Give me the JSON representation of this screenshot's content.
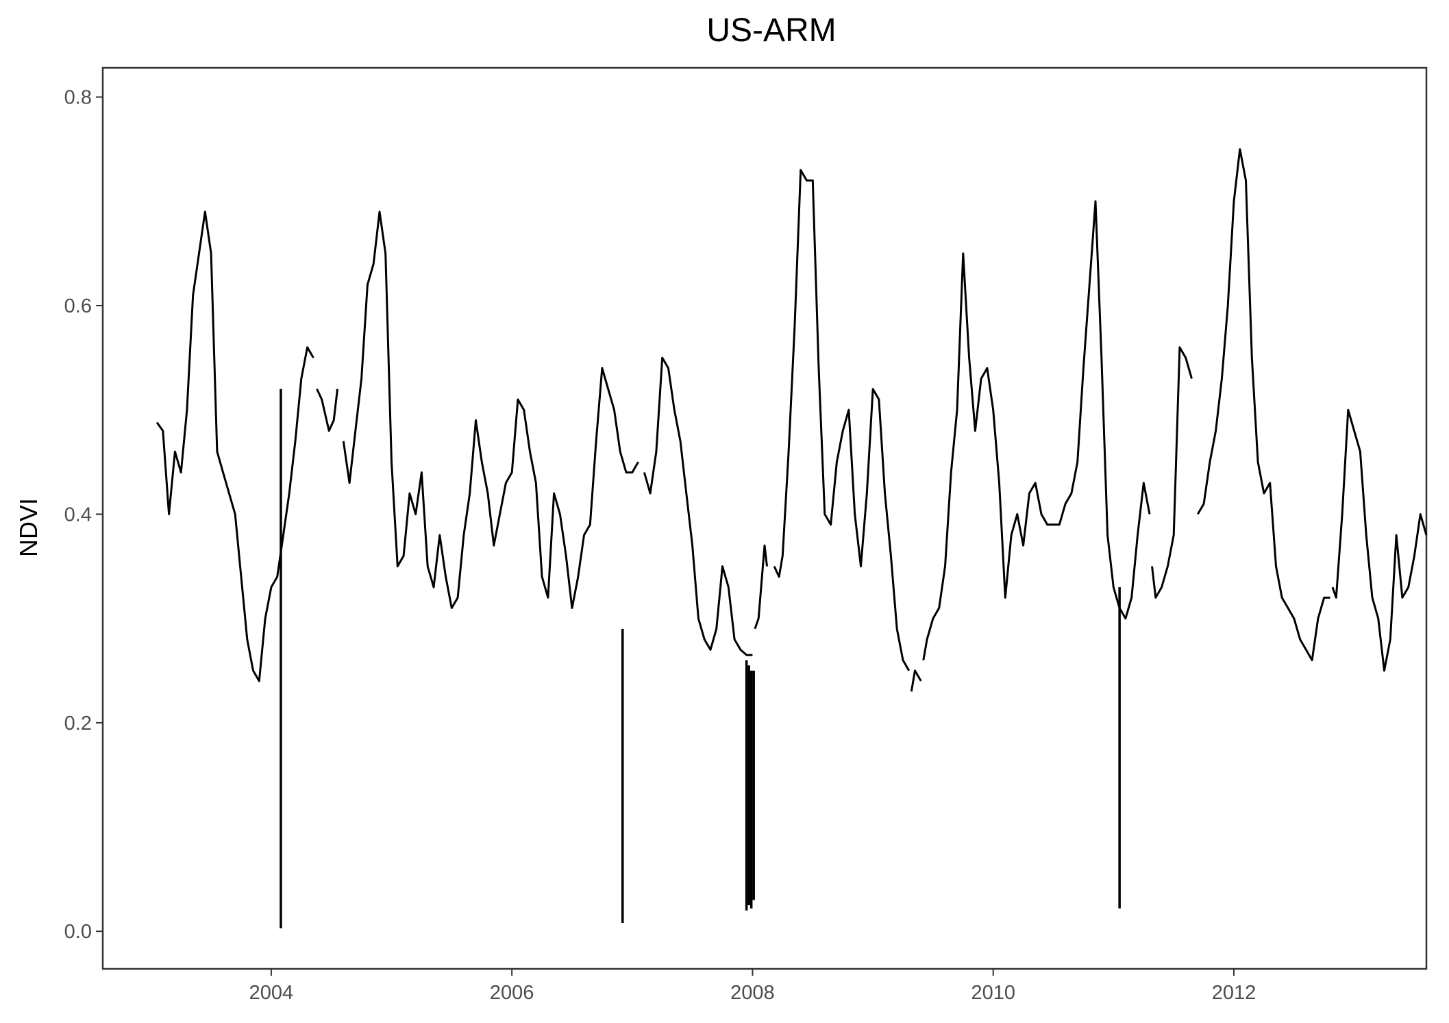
{
  "chart_data": {
    "type": "line",
    "title": "US-ARM",
    "xlabel": "",
    "ylabel": "NDVI",
    "xlim": [
      2002.6,
      2013.6
    ],
    "ylim": [
      -0.036,
      0.828
    ],
    "x_ticks": [
      2004,
      2006,
      2008,
      2010,
      2012
    ],
    "x_tick_labels": [
      "2004",
      "2006",
      "2008",
      "2010",
      "2012"
    ],
    "y_ticks": [
      0.0,
      0.2,
      0.4,
      0.6,
      0.8
    ],
    "y_tick_labels": [
      "0.0",
      "0.2",
      "0.4",
      "0.6",
      "0.8"
    ],
    "grid": false,
    "legend": "none",
    "colors": {
      "line": "#000000",
      "axis": "#333333",
      "tick_text": "#4d4d4d"
    },
    "series": [
      {
        "segments": [
          [
            [
              2003.05,
              0.488
            ],
            [
              2003.1,
              0.48
            ],
            [
              2003.15,
              0.4
            ],
            [
              2003.2,
              0.46
            ],
            [
              2003.25,
              0.44
            ],
            [
              2003.3,
              0.5
            ],
            [
              2003.35,
              0.61
            ],
            [
              2003.4,
              0.65
            ],
            [
              2003.45,
              0.69
            ],
            [
              2003.5,
              0.65
            ],
            [
              2003.55,
              0.46
            ],
            [
              2003.6,
              0.44
            ],
            [
              2003.65,
              0.42
            ],
            [
              2003.7,
              0.4
            ],
            [
              2003.75,
              0.34
            ],
            [
              2003.8,
              0.28
            ],
            [
              2003.85,
              0.25
            ],
            [
              2003.9,
              0.24
            ],
            [
              2003.95,
              0.3
            ],
            [
              2004.0,
              0.33
            ],
            [
              2004.05,
              0.34
            ],
            [
              2004.1,
              0.38
            ],
            [
              2004.15,
              0.42
            ],
            [
              2004.2,
              0.47
            ],
            [
              2004.25,
              0.53
            ],
            [
              2004.3,
              0.56
            ],
            [
              2004.35,
              0.55
            ]
          ],
          [
            [
              2004.38,
              0.52
            ],
            [
              2004.42,
              0.51
            ],
            [
              2004.48,
              0.48
            ],
            [
              2004.52,
              0.49
            ],
            [
              2004.55,
              0.52
            ]
          ],
          [
            [
              2004.6,
              0.47
            ],
            [
              2004.65,
              0.43
            ],
            [
              2004.7,
              0.48
            ],
            [
              2004.75,
              0.53
            ],
            [
              2004.8,
              0.62
            ],
            [
              2004.85,
              0.64
            ],
            [
              2004.9,
              0.69
            ],
            [
              2004.95,
              0.65
            ],
            [
              2005.0,
              0.45
            ],
            [
              2005.05,
              0.35
            ],
            [
              2005.1,
              0.36
            ],
            [
              2005.15,
              0.42
            ],
            [
              2005.2,
              0.4
            ],
            [
              2005.25,
              0.44
            ],
            [
              2005.3,
              0.35
            ],
            [
              2005.35,
              0.33
            ],
            [
              2005.4,
              0.38
            ],
            [
              2005.45,
              0.34
            ],
            [
              2005.5,
              0.31
            ],
            [
              2005.55,
              0.32
            ],
            [
              2005.6,
              0.38
            ],
            [
              2005.65,
              0.42
            ],
            [
              2005.7,
              0.49
            ],
            [
              2005.75,
              0.45
            ],
            [
              2005.8,
              0.42
            ],
            [
              2005.85,
              0.37
            ],
            [
              2005.9,
              0.4
            ],
            [
              2005.95,
              0.43
            ],
            [
              2006.0,
              0.44
            ],
            [
              2006.05,
              0.51
            ],
            [
              2006.1,
              0.5
            ],
            [
              2006.15,
              0.46
            ],
            [
              2006.2,
              0.43
            ],
            [
              2006.25,
              0.34
            ],
            [
              2006.3,
              0.32
            ],
            [
              2006.35,
              0.42
            ],
            [
              2006.4,
              0.4
            ],
            [
              2006.45,
              0.36
            ],
            [
              2006.5,
              0.31
            ],
            [
              2006.55,
              0.34
            ],
            [
              2006.6,
              0.38
            ],
            [
              2006.65,
              0.39
            ],
            [
              2006.7,
              0.47
            ],
            [
              2006.75,
              0.54
            ],
            [
              2006.8,
              0.52
            ],
            [
              2006.85,
              0.5
            ],
            [
              2006.9,
              0.46
            ],
            [
              2006.95,
              0.44
            ],
            [
              2007.0,
              0.44
            ],
            [
              2007.05,
              0.45
            ]
          ],
          [
            [
              2007.1,
              0.44
            ],
            [
              2007.15,
              0.42
            ],
            [
              2007.2,
              0.46
            ],
            [
              2007.25,
              0.55
            ],
            [
              2007.3,
              0.54
            ],
            [
              2007.35,
              0.5
            ],
            [
              2007.4,
              0.47
            ],
            [
              2007.45,
              0.42
            ],
            [
              2007.5,
              0.37
            ],
            [
              2007.55,
              0.3
            ],
            [
              2007.6,
              0.28
            ],
            [
              2007.65,
              0.27
            ],
            [
              2007.7,
              0.29
            ],
            [
              2007.75,
              0.35
            ],
            [
              2007.8,
              0.33
            ],
            [
              2007.85,
              0.28
            ],
            [
              2007.9,
              0.27
            ],
            [
              2007.95,
              0.265
            ],
            [
              2008.0,
              0.265
            ]
          ],
          [
            [
              2008.02,
              0.29
            ],
            [
              2008.05,
              0.3
            ],
            [
              2008.1,
              0.37
            ],
            [
              2008.12,
              0.35
            ]
          ],
          [
            [
              2008.18,
              0.35
            ],
            [
              2008.22,
              0.34
            ],
            [
              2008.25,
              0.36
            ],
            [
              2008.3,
              0.46
            ],
            [
              2008.35,
              0.58
            ],
            [
              2008.4,
              0.73
            ],
            [
              2008.45,
              0.72
            ],
            [
              2008.5,
              0.72
            ],
            [
              2008.55,
              0.54
            ],
            [
              2008.6,
              0.4
            ],
            [
              2008.65,
              0.39
            ],
            [
              2008.7,
              0.45
            ],
            [
              2008.75,
              0.48
            ],
            [
              2008.8,
              0.5
            ],
            [
              2008.85,
              0.4
            ],
            [
              2008.9,
              0.35
            ],
            [
              2008.95,
              0.42
            ],
            [
              2009.0,
              0.52
            ],
            [
              2009.05,
              0.51
            ],
            [
              2009.1,
              0.42
            ],
            [
              2009.15,
              0.36
            ],
            [
              2009.2,
              0.29
            ],
            [
              2009.25,
              0.26
            ],
            [
              2009.3,
              0.25
            ]
          ],
          [
            [
              2009.32,
              0.23
            ],
            [
              2009.35,
              0.25
            ],
            [
              2009.4,
              0.24
            ]
          ],
          [
            [
              2009.42,
              0.26
            ],
            [
              2009.45,
              0.28
            ],
            [
              2009.5,
              0.3
            ],
            [
              2009.55,
              0.31
            ],
            [
              2009.6,
              0.35
            ],
            [
              2009.65,
              0.44
            ],
            [
              2009.7,
              0.5
            ],
            [
              2009.75,
              0.65
            ],
            [
              2009.8,
              0.55
            ],
            [
              2009.85,
              0.48
            ],
            [
              2009.9,
              0.53
            ],
            [
              2009.95,
              0.54
            ],
            [
              2010.0,
              0.5
            ],
            [
              2010.05,
              0.43
            ],
            [
              2010.1,
              0.32
            ],
            [
              2010.15,
              0.38
            ],
            [
              2010.2,
              0.4
            ],
            [
              2010.25,
              0.37
            ],
            [
              2010.3,
              0.42
            ],
            [
              2010.35,
              0.43
            ],
            [
              2010.4,
              0.4
            ],
            [
              2010.45,
              0.39
            ],
            [
              2010.5,
              0.39
            ],
            [
              2010.55,
              0.39
            ],
            [
              2010.6,
              0.41
            ],
            [
              2010.65,
              0.42
            ],
            [
              2010.7,
              0.45
            ],
            [
              2010.75,
              0.54
            ],
            [
              2010.8,
              0.62
            ],
            [
              2010.85,
              0.7
            ],
            [
              2010.9,
              0.55
            ],
            [
              2010.95,
              0.38
            ],
            [
              2011.0,
              0.33
            ],
            [
              2011.05,
              0.31
            ],
            [
              2011.1,
              0.3
            ],
            [
              2011.15,
              0.32
            ],
            [
              2011.2,
              0.38
            ],
            [
              2011.25,
              0.43
            ],
            [
              2011.3,
              0.4
            ]
          ],
          [
            [
              2011.32,
              0.35
            ],
            [
              2011.35,
              0.32
            ],
            [
              2011.4,
              0.33
            ],
            [
              2011.45,
              0.35
            ],
            [
              2011.5,
              0.38
            ],
            [
              2011.55,
              0.56
            ],
            [
              2011.6,
              0.55
            ],
            [
              2011.65,
              0.53
            ]
          ],
          [
            [
              2011.7,
              0.4
            ],
            [
              2011.75,
              0.41
            ],
            [
              2011.8,
              0.45
            ],
            [
              2011.85,
              0.48
            ],
            [
              2011.9,
              0.53
            ],
            [
              2011.95,
              0.6
            ],
            [
              2012.0,
              0.7
            ],
            [
              2012.05,
              0.75
            ],
            [
              2012.1,
              0.72
            ],
            [
              2012.15,
              0.55
            ],
            [
              2012.2,
              0.45
            ],
            [
              2012.25,
              0.42
            ],
            [
              2012.3,
              0.43
            ],
            [
              2012.35,
              0.35
            ],
            [
              2012.4,
              0.32
            ],
            [
              2012.45,
              0.31
            ],
            [
              2012.5,
              0.3
            ],
            [
              2012.55,
              0.28
            ],
            [
              2012.6,
              0.27
            ],
            [
              2012.65,
              0.26
            ],
            [
              2012.7,
              0.3
            ],
            [
              2012.75,
              0.32
            ],
            [
              2012.8,
              0.32
            ]
          ],
          [
            [
              2012.82,
              0.33
            ],
            [
              2012.85,
              0.32
            ],
            [
              2012.9,
              0.4
            ],
            [
              2012.95,
              0.5
            ],
            [
              2013.0,
              0.48
            ],
            [
              2013.05,
              0.46
            ],
            [
              2013.1,
              0.38
            ],
            [
              2013.15,
              0.32
            ],
            [
              2013.2,
              0.3
            ],
            [
              2013.25,
              0.25
            ],
            [
              2013.3,
              0.28
            ],
            [
              2013.35,
              0.38
            ],
            [
              2013.4,
              0.32
            ],
            [
              2013.45,
              0.33
            ],
            [
              2013.5,
              0.36
            ],
            [
              2013.55,
              0.4
            ],
            [
              2013.6,
              0.38
            ]
          ]
        ],
        "spikes": [
          {
            "x": 2004.08,
            "y_from": 0.52,
            "y_to": 0.003
          },
          {
            "x": 2006.92,
            "y_from": 0.29,
            "y_to": 0.008
          },
          {
            "x": 2007.95,
            "y_from": 0.26,
            "y_to": 0.02
          },
          {
            "x": 2007.97,
            "y_from": 0.255,
            "y_to": 0.025
          },
          {
            "x": 2007.99,
            "y_from": 0.25,
            "y_to": 0.022
          },
          {
            "x": 2008.01,
            "y_from": 0.25,
            "y_to": 0.03
          },
          {
            "x": 2011.05,
            "y_from": 0.33,
            "y_to": 0.022
          }
        ]
      }
    ]
  }
}
